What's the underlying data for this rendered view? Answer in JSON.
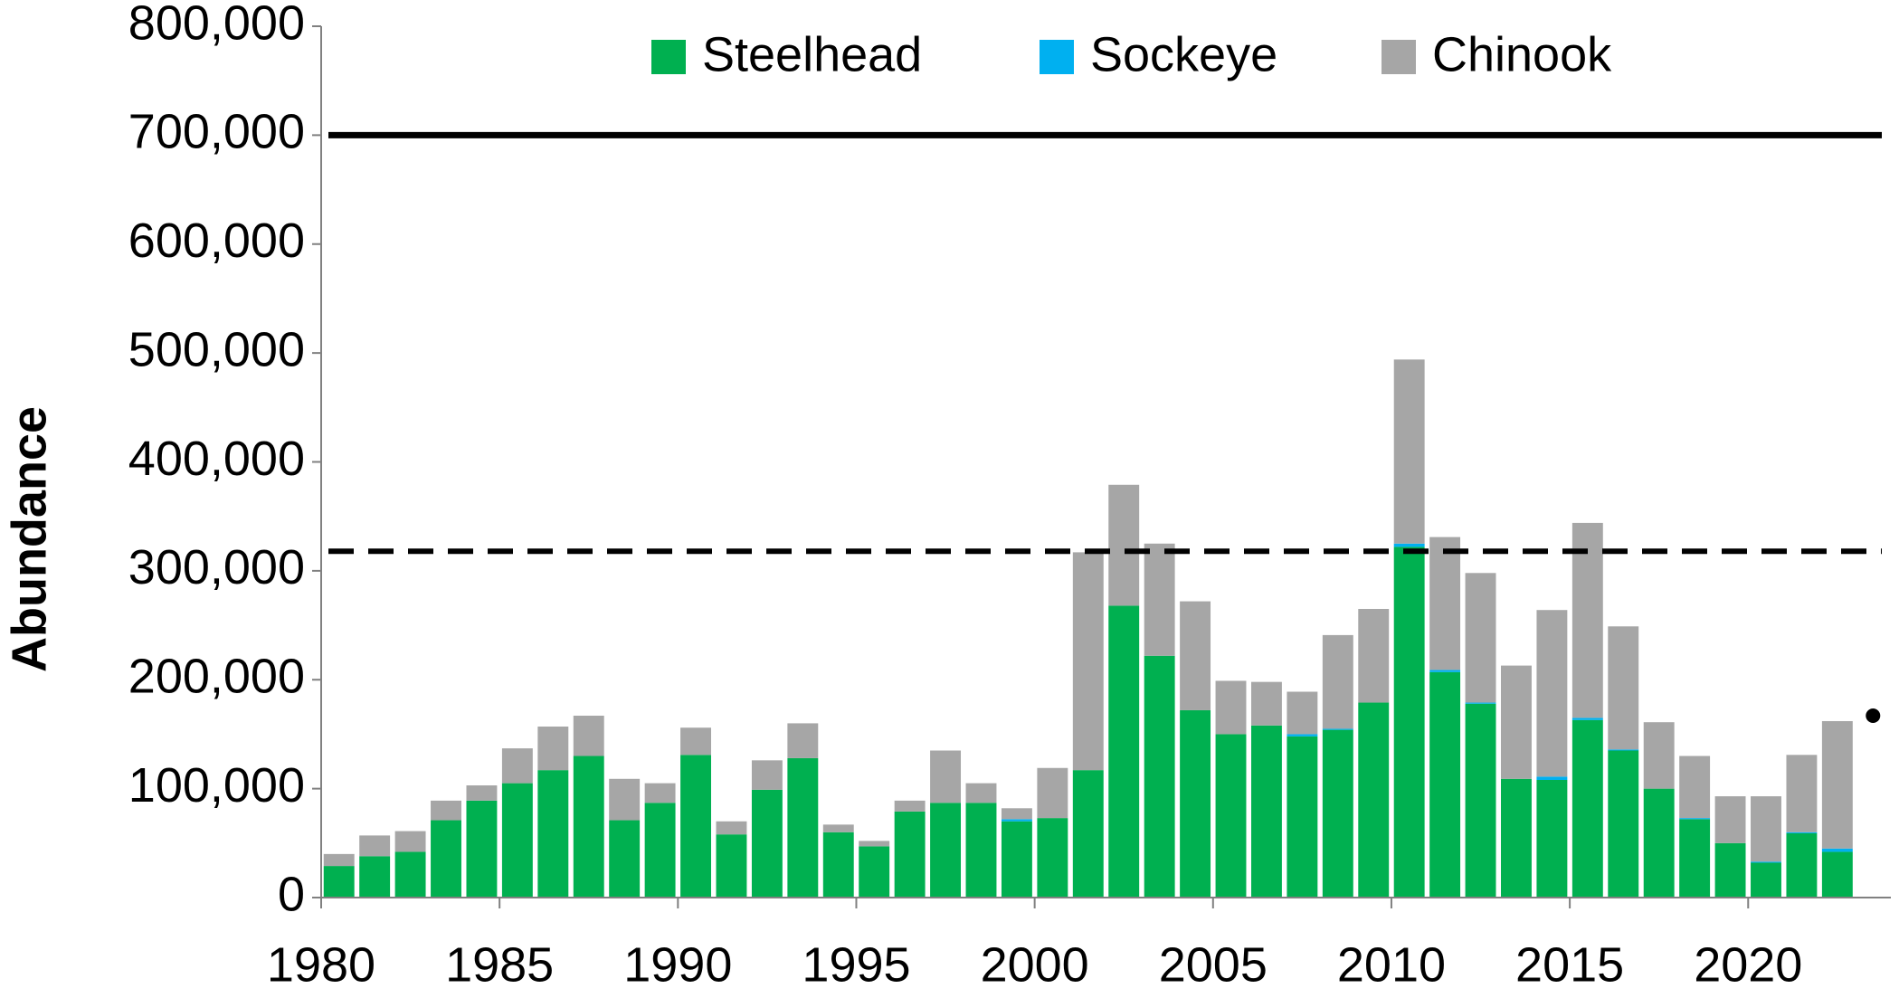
{
  "chart_data": {
    "type": "stacked_bar",
    "y_label": "Abundance",
    "x": [
      1980,
      1981,
      1982,
      1983,
      1984,
      1985,
      1986,
      1987,
      1988,
      1989,
      1990,
      1991,
      1992,
      1993,
      1994,
      1995,
      1996,
      1997,
      1998,
      1999,
      2000,
      2001,
      2002,
      2003,
      2004,
      2005,
      2006,
      2007,
      2008,
      2009,
      2010,
      2011,
      2012,
      2013,
      2014,
      2015,
      2016,
      2017,
      2018,
      2019,
      2020,
      2021,
      2022
    ],
    "series": [
      {
        "name": "Steelhead",
        "color": "#00b050",
        "values": [
          29000,
          38000,
          42000,
          71000,
          89000,
          105000,
          117000,
          130000,
          71000,
          87000,
          131000,
          58000,
          99000,
          128000,
          60000,
          47000,
          79000,
          87000,
          87000,
          70000,
          73000,
          117000,
          268000,
          222000,
          172000,
          150000,
          158000,
          148000,
          154000,
          179000,
          322000,
          207000,
          178000,
          109000,
          108000,
          163000,
          135000,
          100000,
          72000,
          50000,
          32000,
          59000,
          42000
        ]
      },
      {
        "name": "Sockeye",
        "color": "#00b0f0",
        "values": [
          0,
          0,
          0,
          0,
          0,
          0,
          0,
          0,
          0,
          0,
          0,
          0,
          0,
          0,
          0,
          0,
          0,
          0,
          0,
          2000,
          0,
          0,
          0,
          0,
          0,
          0,
          0,
          2000,
          1000,
          0,
          3000,
          2000,
          1000,
          0,
          3000,
          2000,
          1000,
          0,
          1000,
          0,
          1000,
          1000,
          3000
        ]
      },
      {
        "name": "Chinook",
        "color": "#a6a6a6",
        "values": [
          11000,
          19000,
          19000,
          18000,
          14000,
          32000,
          40000,
          37000,
          38000,
          18000,
          25000,
          12000,
          27000,
          32000,
          7000,
          5000,
          10000,
          48000,
          18000,
          10000,
          46000,
          200000,
          111000,
          103000,
          100000,
          49000,
          40000,
          39000,
          86000,
          86000,
          169000,
          122000,
          119000,
          104000,
          153000,
          179000,
          113000,
          61000,
          57000,
          43000,
          60000,
          71000,
          117000
        ]
      }
    ],
    "reference_lines": [
      {
        "value": 700000,
        "style": "solid"
      },
      {
        "value": 318000,
        "style": "dashed"
      }
    ],
    "points": [
      {
        "x": 2023.5,
        "y": 167000
      }
    ],
    "xlim": [
      1980,
      2024
    ],
    "xticks": [
      1980,
      1985,
      1990,
      1995,
      2000,
      2005,
      2010,
      2015,
      2020
    ],
    "ylim": [
      0,
      800000
    ],
    "yticks": [
      0,
      {
        "value": 100000,
        "label": "100,000"
      },
      {
        "value": 200000,
        "label": "200,000"
      },
      {
        "value": 300000,
        "label": "300,000"
      },
      {
        "value": 400000,
        "label": "400,000"
      },
      {
        "value": 500000,
        "label": "500,000"
      },
      {
        "value": 600000,
        "label": "600,000"
      },
      {
        "value": 700000,
        "label": "700,000"
      },
      {
        "value": 800000,
        "label": "800,000"
      }
    ],
    "legend": "top"
  }
}
